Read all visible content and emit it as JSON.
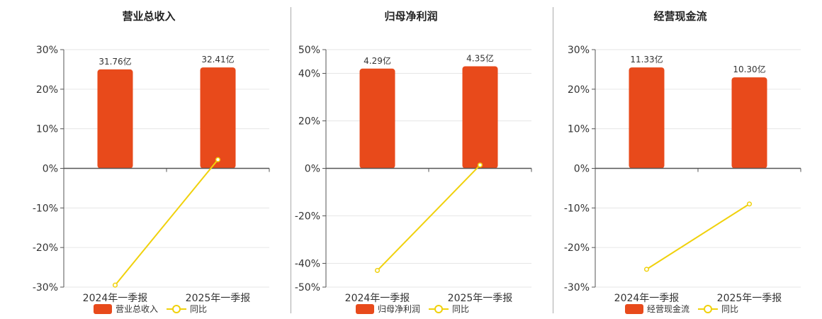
{
  "colors": {
    "bar": "#e84a1b",
    "line": "#f0d10c",
    "grid": "#e6e6e6",
    "axis": "#555555"
  },
  "chart_data": [
    {
      "type": "bar",
      "title": "营业总收入",
      "categories": [
        "2024年一季报",
        "2025年一季报"
      ],
      "bar_labels": [
        "31.76亿",
        "32.41亿"
      ],
      "y_ticks": [
        "30%",
        "20%",
        "10%",
        "0%",
        "-10%",
        "-20%",
        "-30%"
      ],
      "ylim": [
        -30,
        30
      ],
      "series": [
        {
          "name": "营业总收入",
          "type": "bar",
          "values": [
            25.0,
            25.5
          ]
        },
        {
          "name": "同比",
          "type": "line",
          "values": [
            -29.5,
            2.2
          ]
        }
      ]
    },
    {
      "type": "bar",
      "title": "归母净利润",
      "categories": [
        "2024年一季报",
        "2025年一季报"
      ],
      "bar_labels": [
        "4.29亿",
        "4.35亿"
      ],
      "y_ticks": [
        "50%",
        "40%",
        "20%",
        "0%",
        "-20%",
        "-40%",
        "-50%"
      ],
      "ylim": [
        -50,
        50
      ],
      "series": [
        {
          "name": "归母净利润",
          "type": "bar",
          "values": [
            42.0,
            43.0
          ]
        },
        {
          "name": "同比",
          "type": "line",
          "values": [
            -43.0,
            1.4
          ]
        }
      ]
    },
    {
      "type": "bar",
      "title": "经营现金流",
      "categories": [
        "2024年一季报",
        "2025年一季报"
      ],
      "bar_labels": [
        "11.33亿",
        "10.30亿"
      ],
      "y_ticks": [
        "30%",
        "20%",
        "10%",
        "0%",
        "-10%",
        "-20%",
        "-30%"
      ],
      "ylim": [
        -30,
        30
      ],
      "series": [
        {
          "name": "经营现金流",
          "type": "bar",
          "values": [
            25.5,
            23.0
          ]
        },
        {
          "name": "同比",
          "type": "line",
          "values": [
            -25.5,
            -9.0
          ]
        }
      ]
    }
  ]
}
